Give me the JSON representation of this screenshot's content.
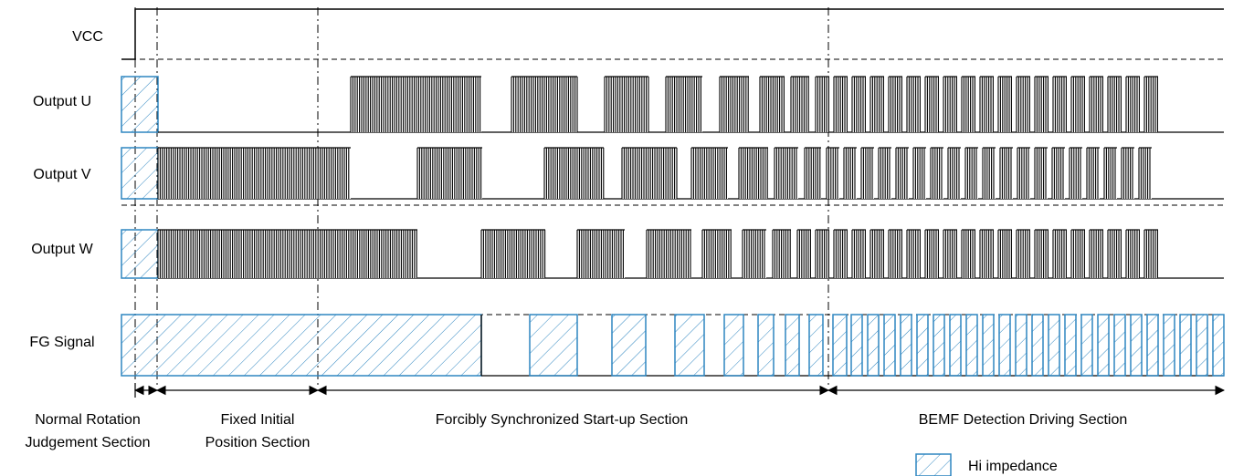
{
  "signals": [
    {
      "key": "vcc",
      "label": "VCC"
    },
    {
      "key": "u",
      "label": "Output U"
    },
    {
      "key": "v",
      "label": "Output V"
    },
    {
      "key": "w",
      "label": "Output W"
    },
    {
      "key": "fg",
      "label": "FG Signal"
    }
  ],
  "sections": [
    {
      "lines": [
        "Normal Rotation",
        "Judgement Section"
      ]
    },
    {
      "lines": [
        "Fixed Initial",
        "Position Section"
      ]
    },
    {
      "lines": [
        "Forcibly Synchronized Start-up Section"
      ]
    },
    {
      "lines": [
        "BEMF Detection Driving Section"
      ]
    }
  ],
  "legend": {
    "label": "Hi impedance"
  },
  "colors": {
    "pwm": "#000000",
    "hiz": "#2e86c1",
    "line": "#000000"
  }
}
